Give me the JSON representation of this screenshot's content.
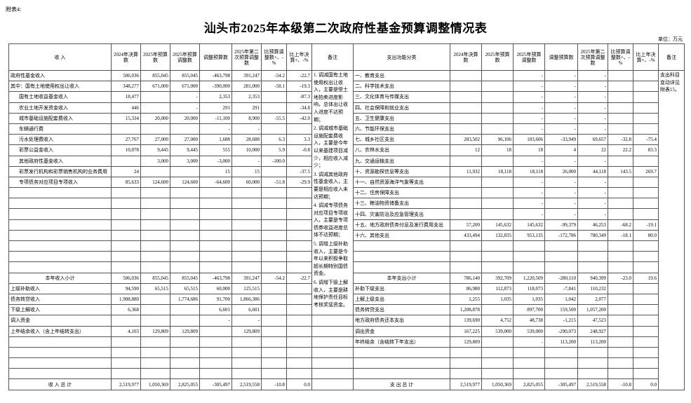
{
  "header": {
    "attachment": "附表4:",
    "title": "汕头市2025年本级第二次政府性基金预算调整情况表",
    "unit": "单位：万元"
  },
  "table": {
    "left_columns": [
      "收 入",
      "2024年决算数",
      "2025年预算数",
      "2025年预算调整数",
      "调整预算数",
      "2025年第二次预算调整数",
      "比预算调整数+、-%",
      "比上年决算+、-%",
      "备注"
    ],
    "right_columns": [
      "支出功能分类",
      "2024年决算数",
      "2025年预算数",
      "2025年预算调整数",
      "调整预算数",
      "2025年第二次预算调整数",
      "比预算调整数+、-%",
      "比上年决算+、-%",
      "备注"
    ],
    "left_rows": [
      [
        "政府性基金收入",
        "506,036",
        "855,045",
        "855,045",
        "-463,798",
        "391,247",
        "-54.2",
        "-22.7"
      ],
      [
        "其中：国有土地使用权出让收入",
        "348,277",
        "671,000",
        "671,000",
        "-390,000",
        "281,000",
        "-58.1",
        "-19.3"
      ],
      [
        "国有土地收益基金收入",
        "18,477",
        null,
        "-",
        "2,353",
        "2,353",
        null,
        "-87.3"
      ],
      [
        "农业土地开发资金收入",
        "446",
        null,
        "-",
        "291",
        "291",
        null,
        "-34.8"
      ],
      [
        "城市基础设施配套费收入",
        "15,334",
        "20,000",
        "20,000",
        "-11,100",
        "8,900",
        "-55.5",
        "-42.0"
      ],
      [
        "车辆通行费",
        null,
        null,
        null,
        "-",
        "-",
        null,
        null
      ],
      [
        "污水处理费收入",
        "27,767",
        "27,000",
        "27,000",
        "1,688",
        "28,688",
        "6.3",
        "3.3"
      ],
      [
        "彩票公益金收入",
        "10,078",
        "9,445",
        "9,445",
        "555",
        "10,000",
        "5.9",
        "-0.8"
      ],
      [
        "其他政府性基金收入",
        null,
        "3,000",
        "3,000",
        "-3,000",
        "-",
        "-100.0",
        null
      ],
      [
        "彩票发行机构和彩票销售机构的业务费用",
        "24",
        null,
        null,
        "15",
        "15",
        null,
        "-37.5"
      ],
      [
        "专项债务对应项目专项收入",
        "85,633",
        "124,600",
        "124,600",
        "-64,600",
        "60,000",
        "-51.8",
        "-29.9"
      ],
      null,
      null,
      null,
      null,
      null,
      null,
      null,
      null,
      [
        "本年收入小计",
        "506,036",
        "855,045",
        "855,045",
        "-463,798",
        "391,247",
        "-54.2",
        "-22.7"
      ],
      [
        "上级补助收入",
        "94,590",
        "65,515",
        "65,515",
        "60,000",
        "125,515",
        null,
        null
      ],
      [
        "债务转贷收入",
        "1,908,880",
        null,
        "1,774,686",
        "91,700",
        "1,866,386",
        null,
        null
      ],
      [
        "下级上解收入",
        "6,368",
        null,
        null,
        "6,601",
        "6,601",
        null,
        null
      ],
      [
        "调入资金",
        null,
        null,
        null,
        "-",
        "-",
        null,
        null
      ],
      [
        "上年结余收入（含上年结转支出）",
        "4,103",
        "129,809",
        "129,809",
        null,
        "129,809",
        null,
        null
      ],
      null,
      null,
      null,
      null,
      [
        "收 入 总 计",
        "2,519,977",
        "1,050,369",
        "2,825,055",
        "-305,497",
        "2,519,558",
        "-10.8",
        "0.0"
      ]
    ],
    "right_rows": [
      [
        "一、教育支出",
        null,
        null,
        "-",
        "-",
        "-",
        null,
        null
      ],
      [
        "二、科学技术支出",
        null,
        null,
        "-",
        "-",
        "-",
        null,
        null
      ],
      [
        "三、文化体育与传媒支出",
        null,
        null,
        "-",
        "-",
        "-",
        null,
        null
      ],
      [
        "四、社会保障和就业支出",
        null,
        null,
        "-",
        "-",
        "-",
        null,
        null
      ],
      [
        "五、卫生健康支出",
        null,
        null,
        "-",
        "-",
        "-",
        null,
        null
      ],
      [
        "六、节能环保支出",
        null,
        null,
        "-",
        "-",
        "-",
        null,
        null
      ],
      [
        "七、城乡社区支出",
        "283,502",
        "96,106",
        "103,606",
        "-33,949",
        "69,657",
        "-32.8",
        "-75.4"
      ],
      [
        "八、农林水支出",
        "12",
        "18",
        "18",
        "4",
        "22",
        "22.2",
        "83.3"
      ],
      [
        "九、交通运输支出",
        null,
        null,
        "-",
        "-",
        "-",
        null,
        null
      ],
      [
        "十、资源勘探信息等支出",
        "11,932",
        "18,118",
        "18,118",
        "26,000",
        "44,118",
        "143.5",
        "269.7"
      ],
      [
        "十一、自然资源海洋气象等支出",
        null,
        null,
        "-",
        "-",
        "-",
        null,
        null
      ],
      [
        "十二、住房保障支出",
        null,
        null,
        "-",
        "-",
        "-",
        null,
        null
      ],
      [
        "十三、粮油物资储备支出",
        null,
        null,
        "-",
        "-",
        "-",
        null,
        null
      ],
      [
        "十四、灾害防治及应急管理支出",
        null,
        null,
        "-",
        "-",
        "-",
        null,
        null
      ],
      [
        "十五、地方政府债务付息及发行费用支出",
        "57,200",
        "145,632",
        "145,632",
        "-99,379",
        "46,253",
        "-68.2",
        "-19.1"
      ],
      [
        "十六、其他支出",
        "433,494",
        "132,835",
        "953,135",
        "-172,786",
        "780,349",
        "-18.1",
        "80.0"
      ],
      null,
      null,
      null,
      [
        "本年支出小计",
        "786,140",
        "392,709",
        "1,220,509",
        "-280,110",
        "940,399",
        "-23.0",
        "19.6"
      ],
      [
        "补助下级支出",
        "86,980",
        "112,873",
        "118,073",
        "-7,841",
        "110,232",
        null,
        null
      ],
      [
        "上解上级支出",
        "1,255",
        "1,035",
        "1,035",
        "1,042",
        "2,077",
        null,
        null
      ],
      [
        "债务转贷支出",
        "1,208,878",
        null,
        "897,700",
        "159,500",
        "1,057,200",
        null,
        null
      ],
      [
        "地方政府债务还本支出",
        "139,690",
        "4,752",
        "48,738",
        "-1,215",
        "47,523",
        null,
        null
      ],
      [
        "调出资金",
        "167,225",
        "539,000",
        "539,000",
        "-290,073",
        "248,927",
        null,
        null
      ],
      [
        "年终结余（含结转下年支出）",
        "129,809",
        null,
        "-",
        "113,200",
        "113,200",
        null,
        null
      ],
      null,
      null,
      null,
      [
        "支 出 总 计",
        "2,519,977",
        "1,050,369",
        "2,825,055",
        "-305,497",
        "2,519,558",
        "-10.8",
        "0.0"
      ]
    ],
    "left_notes": [
      "1. 调减国有土地使用权出让收入，主要是受土地拍卖进度影响，总体出让收入进度不达预期；",
      "2. 调减城市基础设施配套费收入，主要是今年以来基建项目减少，相应收入减少；",
      "3. 调减其他政府性基金收入，主要是相应收入未达预期；",
      "4. 调减专项债务对应项目专项收入，主要是专项债券收益进度总体不达预期；",
      "5. 调增上级补助收入，主要是今年以来积极争取超长期特别国债资金。",
      "6. 调增下级上解收入，主要是耕地保护责任目标考核奖惩资金。"
    ],
    "right_note": "支出科目变动详见附表15。"
  }
}
